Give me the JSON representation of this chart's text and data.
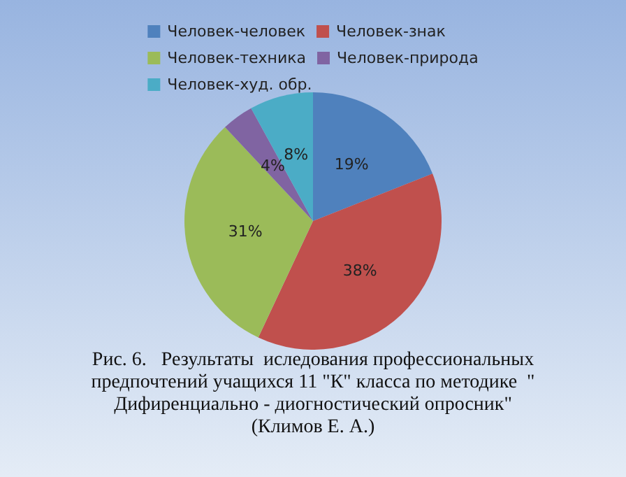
{
  "chart_data": {
    "type": "pie",
    "categories": [
      "Человек-человек",
      "Человек-знак",
      "Человек-техника",
      "Человек-природа",
      "Человек-худ. обр."
    ],
    "values": [
      19,
      38,
      31,
      4,
      8
    ],
    "value_labels": [
      "19%",
      "38%",
      "31%",
      "4%",
      "8%"
    ],
    "colors": [
      "#4f81bd",
      "#c0504d",
      "#9bbb59",
      "#8064a2",
      "#4bacc6"
    ],
    "legend": "top",
    "annotations": [
      "Рис. 6.   Результаты  иследования профессиональных предпочтений учащихся 11 \"К\" класса по методике  \" Дифиренциально - диогностический опросник\" (Климов Е. А.)"
    ]
  }
}
